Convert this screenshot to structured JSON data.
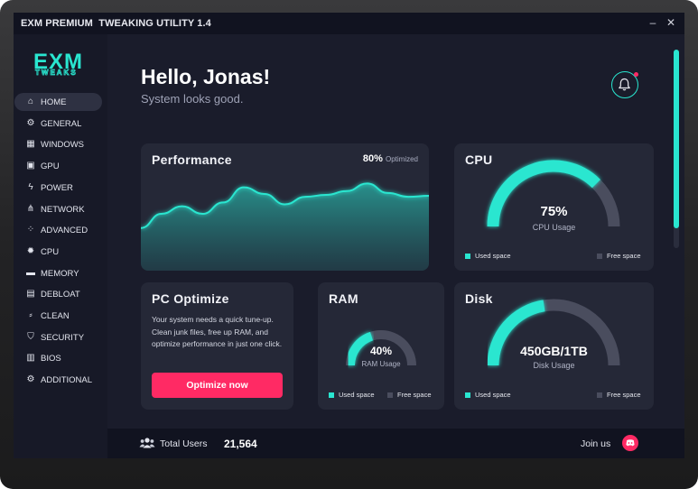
{
  "window": {
    "title": "EXM PREMIUM  TWEAKING UTILITY 1.4",
    "minimize": "–",
    "close": "✕"
  },
  "logo": {
    "line1": "EXM",
    "line2": "TWEAKS"
  },
  "sidebar": {
    "items": [
      {
        "label": "HOME",
        "icon": "home-icon",
        "active": true
      },
      {
        "label": "GENERAL",
        "icon": "gear-icon"
      },
      {
        "label": "WINDOWS",
        "icon": "windows-icon"
      },
      {
        "label": "GPU",
        "icon": "gpu-icon"
      },
      {
        "label": "POWER",
        "icon": "lightning-icon"
      },
      {
        "label": "NETWORK",
        "icon": "network-icon"
      },
      {
        "label": "ADVANCED",
        "icon": "nodes-icon"
      },
      {
        "label": "CPU",
        "icon": "cpu-icon"
      },
      {
        "label": "MEMORY",
        "icon": "memory-icon"
      },
      {
        "label": "DEBLOAT",
        "icon": "debloat-icon"
      },
      {
        "label": "CLEAN",
        "icon": "broom-icon"
      },
      {
        "label": "SECURITY",
        "icon": "shield-icon"
      },
      {
        "label": "BIOS",
        "icon": "bios-icon"
      },
      {
        "label": "ADDITIONAL",
        "icon": "gear-icon"
      }
    ]
  },
  "header": {
    "greeting": "Hello, Jonas!",
    "subtitle": "System looks good."
  },
  "performance": {
    "title": "Performance",
    "percent": "80%",
    "percent_label": "Optimized",
    "series": [
      45,
      60,
      68,
      60,
      72,
      88,
      81,
      70,
      78,
      80,
      84,
      92,
      82,
      78,
      79
    ]
  },
  "cpu": {
    "title": "CPU",
    "value": "75%",
    "label": "CPU Usage",
    "fill": 0.75,
    "used": "Used space",
    "free": "Free space"
  },
  "ram": {
    "title": "RAM",
    "value": "40%",
    "label": "RAM Usage",
    "fill": 0.4,
    "used": "Used space",
    "free": "Free space"
  },
  "disk": {
    "title": "Disk",
    "value": "450GB/1TB",
    "label": "Disk Usage",
    "fill": 0.45,
    "used": "Used space",
    "free": "Free space"
  },
  "optimize": {
    "title": "PC Optimize",
    "text": "Your system needs a quick tune-up. Clean junk files, free up RAM, and optimize performance in just one click.",
    "button": "Optimize now"
  },
  "footer": {
    "users_label": "Total Users",
    "users_value": "21,564",
    "join_label": "Join us"
  },
  "colors": {
    "accent": "#29e6d0",
    "danger": "#ff2a64",
    "free": "#4a4d5e"
  }
}
